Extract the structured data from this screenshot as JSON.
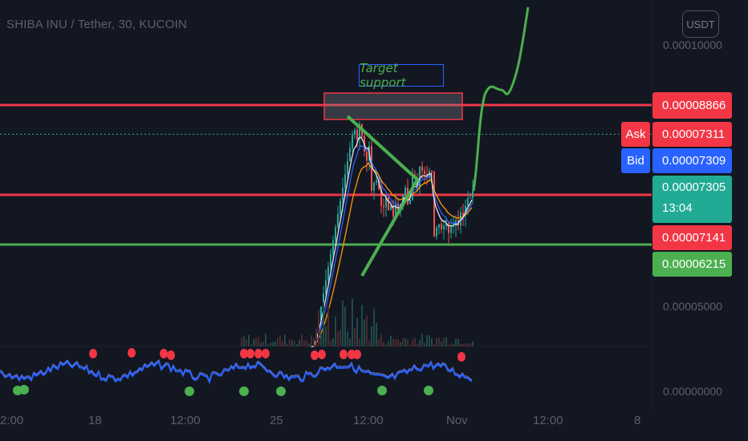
{
  "header": {
    "ticker": "SHIBA INU / Tether, 30, KUCOIN",
    "currency_badge": "USDT"
  },
  "annotation": {
    "label": "Target support"
  },
  "price_axis": {
    "ticks": [
      "0.00010000",
      "0.00005000",
      "0.00000000"
    ]
  },
  "price_tags": {
    "resistance": "0.00008866",
    "ask_label": "Ask",
    "ask": "0.00007311",
    "bid_label": "Bid",
    "bid": "0.00007309",
    "last": "0.00007305",
    "countdown": "13:04",
    "level_mid": "0.00007141",
    "support": "0.00006215"
  },
  "time_axis": {
    "labels": [
      "2:00",
      "18",
      "12:00",
      "25",
      "12:00",
      "Nov",
      "12:00",
      "8"
    ]
  },
  "colors": {
    "background": "#131722",
    "red_line": "#f23645",
    "green_line": "#4caf50",
    "blue_tag": "#2962ff",
    "teal_tag": "#22ab94",
    "projection": "#4caf50",
    "oscillator": "#2962ff"
  },
  "chart_data": {
    "type": "line",
    "title": "SHIBA INU / Tether, 30, KUCOIN",
    "xlabel": "",
    "ylabel": "",
    "x_ticks": [
      "2:00",
      "18",
      "12:00",
      "25",
      "12:00",
      "Nov",
      "12:00",
      "8"
    ],
    "y_ticks": [
      0.0001,
      5e-05,
      0.0
    ],
    "ylim": [
      0.0,
      0.000102
    ],
    "horizontal_levels": [
      {
        "value": 8.866e-05,
        "color": "red"
      },
      {
        "value": 7.141e-05,
        "color": "red"
      },
      {
        "value": 6.215e-05,
        "color": "green"
      }
    ],
    "last_price": 7.305e-05,
    "series": [
      {
        "values": [
          0.0,
          0.0,
          0.0,
          0.0,
          0.0,
          0.0,
          0.0,
          0.0,
          0.0,
          0.0,
          0.0,
          0.0,
          0.0,
          0.0,
          0.0,
          0.0,
          0.0,
          0.0,
          0.0,
          0.0,
          0.0,
          0.0,
          0.0,
          0.0,
          0.0,
          0.0,
          0.0,
          0.0,
          0.0,
          0.0,
          0.0,
          0.0,
          0.0,
          0.0,
          0.0,
          0.0,
          0.0,
          0.0,
          0.0,
          0.0,
          0.0,
          0.0,
          0.0,
          0.0,
          0.0,
          0.0,
          0.0,
          0.0,
          0.0,
          0.0,
          0.0,
          0.0,
          0.0,
          0.0,
          0.0,
          0.0,
          0.0,
          0.0,
          0.0,
          0.0,
          0.0,
          0.0,
          0.0,
          0.0,
          0.0,
          0.0,
          0.0,
          0.0,
          0.0,
          0.0,
          0.0,
          0.0,
          0.0,
          0.0,
          0.0,
          0.0,
          0.0,
          0.0,
          0.0,
          0.0,
          0.0,
          0.0,
          0.0,
          0.0,
          0.0,
          0.0,
          0.0,
          0.0,
          0.0,
          0.0,
          0.0,
          0.0,
          0.0,
          0.0,
          0.0,
          0.0,
          0.0,
          0.0,
          0.0,
          0.0,
          0.0,
          0.0,
          0.0,
          0.0,
          0.0,
          0.0,
          0.0,
          0.0,
          0.0,
          0.0,
          0.0,
          0.0,
          0.0,
          0.0,
          0.0,
          0.0,
          0.0,
          0.0,
          0.0,
          0.0,
          0.0,
          0.0,
          0.0,
          0.0,
          0.0,
          0.0,
          0.0,
          0.0,
          0.0,
          0.0,
          0.0,
          0.0,
          0.0,
          0.0,
          0.0,
          0.0,
          0.0,
          0.0,
          0.0,
          0.0,
          0.0,
          0.0,
          0.0,
          0.0,
          0.0,
          0.0,
          0.0,
          0.0,
          0.0,
          0.0,
          0.0,
          0.0,
          0.0,
          0.0,
          0.0,
          0.0,
          0.0,
          0.0,
          0.0,
          0.0,
          0.0,
          0.0,
          0.0,
          0.0,
          0.0,
          0.0,
          0.0,
          0.0,
          0.0,
          0.0,
          0.0,
          0.0,
          0.0,
          0.0,
          0.0,
          0.0,
          0.0,
          0.0,
          0.0,
          0.0,
          0.0,
          0.0,
          0.0,
          0.0,
          0.0,
          0.0,
          0.0,
          0.0,
          0.0,
          0.0,
          0.0,
          0.0,
          0.0,
          0.0,
          0.0,
          0.0,
          0.0,
          0.0,
          0.0,
          0.0,
          0.0,
          0.0,
          0.0,
          0.0,
          0.0,
          0.0,
          0.0,
          0.0,
          0.0,
          0.0,
          0.0,
          0.0,
          0.0,
          0.0,
          0.0,
          0.0,
          0.0,
          0.0,
          0.0,
          0.0,
          0.0,
          0.0,
          0.0,
          0.0,
          0.0,
          0.0,
          0.0,
          0.0,
          0.0,
          0.0,
          0.0,
          0.0,
          0.0,
          0.0,
          0.0,
          0.0,
          0.0,
          0.0,
          0.0,
          0.0,
          0.0,
          0.0,
          0.0,
          0.0,
          0.0,
          0.0,
          0.0,
          0.0,
          0.0,
          0.0,
          0.0,
          0.0,
          0.0,
          0.0,
          0.0,
          0.0,
          0.0,
          0.0,
          0.0,
          0.0,
          0.0,
          0.0,
          0.0,
          0.0,
          0.0,
          0.0,
          0.0,
          0.0,
          0.0,
          0.0,
          0.0,
          0.0,
          0.0,
          0.0,
          0.0,
          0.0,
          0.0,
          0.0,
          0.0,
          0.0,
          0.0,
          0.0,
          0.0,
          0.0,
          0.0,
          0.0,
          0.0,
          0.0,
          0.0,
          0.0,
          0.0,
          0.0,
          0.0,
          0.0,
          0.0,
          0.0,
          0.0,
          0.0,
          0.0,
          0.0,
          0.0,
          0.0,
          0.0,
          0.0,
          0.0,
          0.0,
          0.0,
          0.0,
          0.0,
          0.0,
          0.0,
          0.0,
          0.0,
          0.0,
          0.0,
          0.0,
          0.0,
          0.0,
          0.0,
          0.0,
          0.0,
          0.0,
          0.0,
          0.0,
          0.0,
          0.0,
          0.0,
          0.0,
          0.0,
          0.0,
          0.0,
          0.0,
          0.0,
          0.0,
          0.0,
          0.0,
          0.0,
          0.0,
          0.0,
          0.0,
          0.0,
          0.0,
          0.0,
          0.0,
          0.0,
          0.0,
          0.0,
          0.0,
          0.0,
          0.0,
          0.0,
          0.0,
          0.0,
          0.0,
          0.0,
          0.0,
          0.0,
          0.0,
          0.0,
          0.0,
          0.0,
          0.0,
          0.0,
          0.0,
          0.0,
          0.0,
          0.0,
          0.0,
          0.0,
          0.0,
          0.0,
          0.0,
          0.0,
          0.0,
          0.0,
          0.0,
          0.0,
          0.0,
          0.0,
          0.0,
          0.0,
          0.0,
          0.0,
          0.0,
          0.0,
          0.0,
          0.0,
          0.0,
          0.0,
          0.0,
          0.0,
          0.0,
          0.0,
          0.0,
          0.0,
          0.0,
          0.0,
          0.0,
          0.0,
          0.0,
          0.0,
          0.0,
          0.0,
          0.0,
          0.0,
          0.0,
          0.0,
          0.0,
          0.0,
          0.0,
          0.0,
          0.0,
          0.0
        ]
      }
    ]
  }
}
